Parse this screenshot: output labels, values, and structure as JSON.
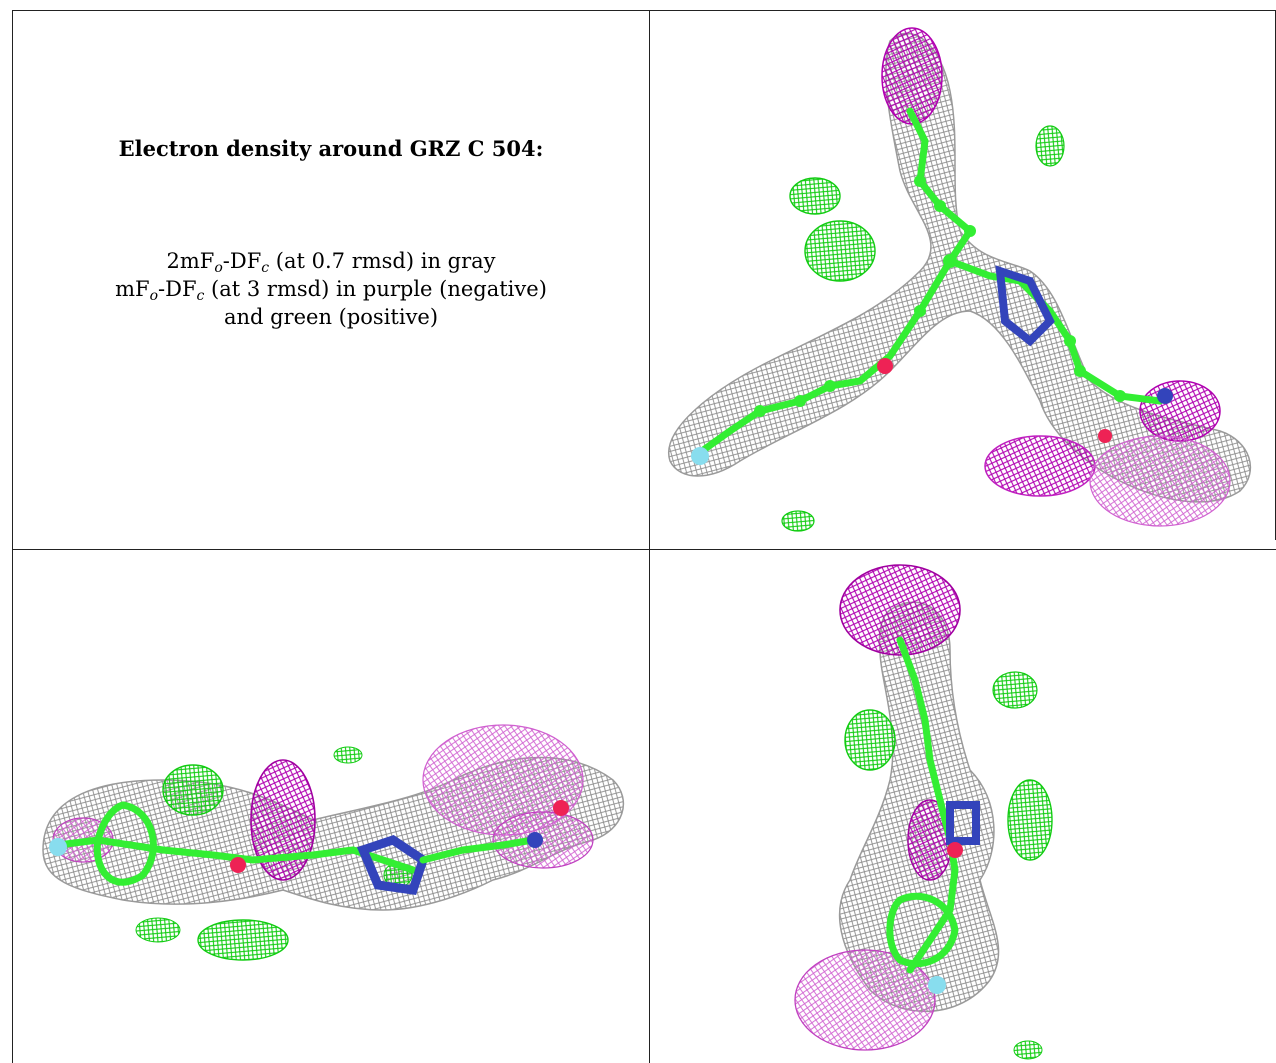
{
  "caption": {
    "title": "Electron density around GRZ C 504:",
    "line1": {
      "prefix": "2mF",
      "sub1": "o",
      "mid": "-DF",
      "sub2": "c",
      "suffix": " (at 0.7 rmsd) in gray"
    },
    "line2": {
      "prefix": "mF",
      "sub1": "o",
      "mid": "-DF",
      "sub2": "c",
      "suffix": " (at 3 rmsd) in purple (negative)"
    },
    "line3": "and green (positive)"
  },
  "colors": {
    "density_2fofc": "#9a9a9a",
    "density_negative": "#c020c0",
    "density_positive": "#22dd22",
    "carbon": "#33ee33",
    "nitrogen": "#3344bb",
    "oxygen": "#ee2255",
    "fluorine": "#88ddee",
    "grid_line": "#222222"
  },
  "icons": [
    "mesh-density-render"
  ]
}
